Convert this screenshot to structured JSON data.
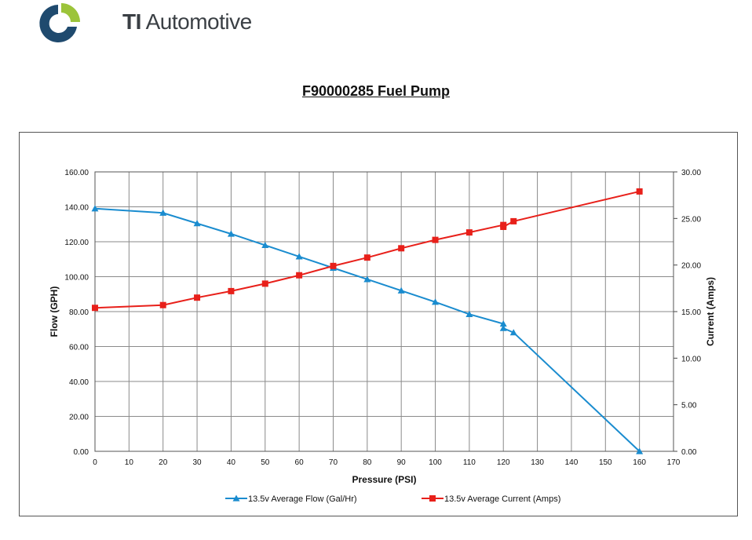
{
  "brand": {
    "name_bold": "TI",
    "name_rest": "Automotive"
  },
  "document": {
    "title": "F90000285 Fuel Pump"
  },
  "chart_data": {
    "type": "line",
    "title": "",
    "xlabel": "Pressure (PSI)",
    "ylabel": "Flow (GPH)",
    "y2label": "Current (Amps)",
    "xlim": [
      0,
      170
    ],
    "ylim": [
      0,
      160
    ],
    "y2lim": [
      0,
      30
    ],
    "x_ticks": [
      "0",
      "10",
      "20",
      "30",
      "40",
      "50",
      "60",
      "70",
      "80",
      "90",
      "100",
      "110",
      "120",
      "130",
      "140",
      "150",
      "160",
      "170"
    ],
    "y_ticks": [
      "0.00",
      "20.00",
      "40.00",
      "60.00",
      "80.00",
      "100.00",
      "120.00",
      "140.00",
      "160.00"
    ],
    "y2_ticks": [
      "0.00",
      "5.00",
      "10.00",
      "15.00",
      "20.00",
      "25.00",
      "30.00"
    ],
    "grid": true,
    "legend_position": "bottom",
    "series": [
      {
        "name": "13.5v Average Flow (Gal/Hr)",
        "axis": "left",
        "color": "#1a8ccf",
        "marker": "triangle",
        "points": [
          [
            0,
            139
          ],
          [
            20,
            136.5
          ],
          [
            30,
            130.5
          ],
          [
            40,
            124.5
          ],
          [
            50,
            118
          ],
          [
            60,
            111.5
          ],
          [
            70,
            105
          ],
          [
            80,
            98.5
          ],
          [
            90,
            92
          ],
          [
            100,
            85.5
          ],
          [
            110,
            78.5
          ],
          [
            120,
            73
          ],
          [
            120,
            70.5
          ],
          [
            123,
            68
          ],
          [
            160,
            0
          ]
        ]
      },
      {
        "name": "13.5v Average Current (Amps)",
        "axis": "right",
        "color": "#e8201a",
        "marker": "square",
        "points": [
          [
            0,
            15.4
          ],
          [
            20,
            15.7
          ],
          [
            30,
            16.5
          ],
          [
            40,
            17.2
          ],
          [
            50,
            18
          ],
          [
            60,
            18.9
          ],
          [
            70,
            19.9
          ],
          [
            80,
            20.8
          ],
          [
            90,
            21.8
          ],
          [
            100,
            22.7
          ],
          [
            110,
            23.5
          ],
          [
            120,
            24.3
          ],
          [
            120,
            24.1
          ],
          [
            123,
            24.7
          ],
          [
            160,
            27.9
          ]
        ]
      }
    ]
  }
}
